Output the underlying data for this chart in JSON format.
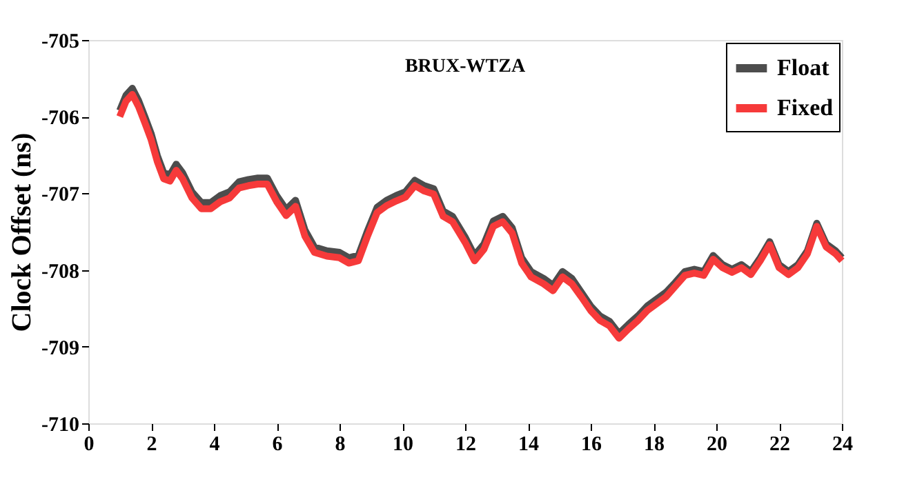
{
  "chart_data": {
    "type": "line",
    "title": "BRUX-WTZA",
    "ylabel": "Clock Offset (ns)",
    "x": [
      1.0,
      1.2,
      1.4,
      1.6,
      1.8,
      2.0,
      2.2,
      2.4,
      2.6,
      2.8,
      3.0,
      3.3,
      3.6,
      3.9,
      4.2,
      4.5,
      4.8,
      5.1,
      5.4,
      5.7,
      6.0,
      6.3,
      6.6,
      6.9,
      7.2,
      7.6,
      8.0,
      8.3,
      8.6,
      8.9,
      9.2,
      9.5,
      9.8,
      10.1,
      10.4,
      10.7,
      11.0,
      11.3,
      11.6,
      12.0,
      12.3,
      12.6,
      12.9,
      13.2,
      13.5,
      13.8,
      14.1,
      14.5,
      14.8,
      15.1,
      15.4,
      15.7,
      16.0,
      16.3,
      16.6,
      16.9,
      17.2,
      17.5,
      17.8,
      18.1,
      18.4,
      18.7,
      19.0,
      19.3,
      19.6,
      19.9,
      20.2,
      20.5,
      20.8,
      21.1,
      21.4,
      21.7,
      22.0,
      22.3,
      22.6,
      22.9,
      23.2,
      23.5,
      23.8,
      24.0
    ],
    "series": [
      {
        "name": "Float",
        "color": "#4d4d4d",
        "values": [
          -705.92,
          -705.72,
          -705.63,
          -705.79,
          -706.0,
          -706.22,
          -706.51,
          -706.73,
          -706.76,
          -706.62,
          -706.73,
          -706.98,
          -707.12,
          -707.12,
          -707.03,
          -706.98,
          -706.85,
          -706.82,
          -706.8,
          -706.8,
          -707.03,
          -707.21,
          -707.09,
          -707.48,
          -707.7,
          -707.75,
          -707.77,
          -707.84,
          -707.81,
          -707.48,
          -707.18,
          -707.09,
          -707.03,
          -706.98,
          -706.83,
          -706.9,
          -706.94,
          -707.23,
          -707.3,
          -707.57,
          -707.81,
          -707.66,
          -707.36,
          -707.3,
          -707.45,
          -707.84,
          -708.02,
          -708.11,
          -708.2,
          -708.02,
          -708.11,
          -708.29,
          -708.47,
          -708.6,
          -708.67,
          -708.83,
          -708.71,
          -708.6,
          -708.47,
          -708.38,
          -708.29,
          -708.16,
          -708.02,
          -707.99,
          -708.02,
          -707.81,
          -707.93,
          -707.99,
          -707.93,
          -708.02,
          -707.84,
          -707.63,
          -707.93,
          -708.02,
          -707.93,
          -707.75,
          -707.39,
          -707.66,
          -707.75,
          -707.84
        ]
      },
      {
        "name": "Fixed",
        "color": "#f63a3a",
        "values": [
          -706.0,
          -705.8,
          -705.71,
          -705.87,
          -706.08,
          -706.3,
          -706.59,
          -706.81,
          -706.84,
          -706.7,
          -706.81,
          -707.06,
          -707.2,
          -707.2,
          -707.11,
          -707.06,
          -706.93,
          -706.9,
          -706.88,
          -706.88,
          -707.11,
          -707.29,
          -707.17,
          -707.56,
          -707.77,
          -707.82,
          -707.84,
          -707.91,
          -707.88,
          -707.55,
          -707.25,
          -707.16,
          -707.1,
          -707.05,
          -706.9,
          -706.97,
          -707.01,
          -707.3,
          -707.37,
          -707.64,
          -707.88,
          -707.73,
          -707.43,
          -707.37,
          -707.52,
          -707.91,
          -708.09,
          -708.18,
          -708.27,
          -708.09,
          -708.18,
          -708.35,
          -708.53,
          -708.66,
          -708.73,
          -708.89,
          -708.77,
          -708.66,
          -708.53,
          -708.44,
          -708.35,
          -708.21,
          -708.07,
          -708.04,
          -708.07,
          -707.86,
          -707.97,
          -708.03,
          -707.97,
          -708.06,
          -707.88,
          -707.67,
          -707.97,
          -708.06,
          -707.97,
          -707.79,
          -707.43,
          -707.7,
          -707.79,
          -707.88
        ]
      }
    ],
    "xlim": [
      0,
      24
    ],
    "xticks": [
      0,
      2,
      4,
      6,
      8,
      10,
      12,
      14,
      16,
      18,
      20,
      22,
      24
    ],
    "ylim": [
      -710,
      -705
    ],
    "yticks": [
      -710,
      -709,
      -708,
      -707,
      -706,
      -705
    ],
    "grid": false,
    "legend": "top right",
    "line_style": "solid",
    "marker": "none"
  }
}
